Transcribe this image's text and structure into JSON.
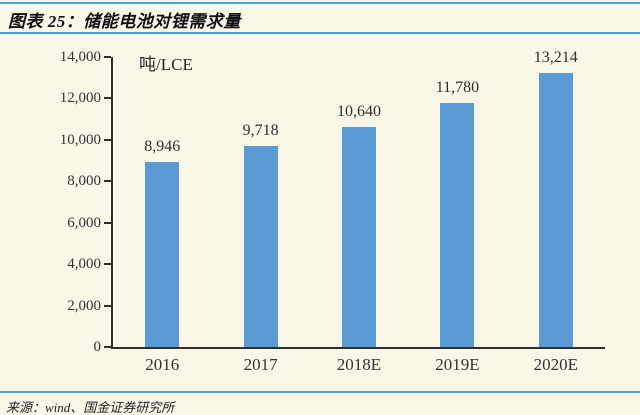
{
  "header": {
    "title": "图表 25：储能电池对锂需求量"
  },
  "chart_data": {
    "type": "bar",
    "title": "储能电池对锂需求量",
    "categories": [
      "2016",
      "2017",
      "2018E",
      "2019E",
      "2020E"
    ],
    "values": [
      8946,
      9718,
      10640,
      11780,
      13214
    ],
    "value_labels": [
      "8,946",
      "9,718",
      "10,640",
      "11,780",
      "13,214"
    ],
    "xlabel": "",
    "ylabel": "吨/LCE",
    "ylim": [
      0,
      14000
    ],
    "ytick_step": 2000,
    "ytick_labels": [
      "0",
      "2,000",
      "4,000",
      "6,000",
      "8,000",
      "10,000",
      "12,000",
      "14,000"
    ],
    "grid": false,
    "legend": "none",
    "bar_color": "#5B9BD5"
  },
  "footer": {
    "source": "来源：wind、国金证券研究所"
  },
  "colors": {
    "background": "#FAF6E8",
    "rule_blue": "#45A2D4",
    "bar_blue": "#5B9BD5",
    "axis": "#2E2E2E",
    "text": "#262626"
  }
}
